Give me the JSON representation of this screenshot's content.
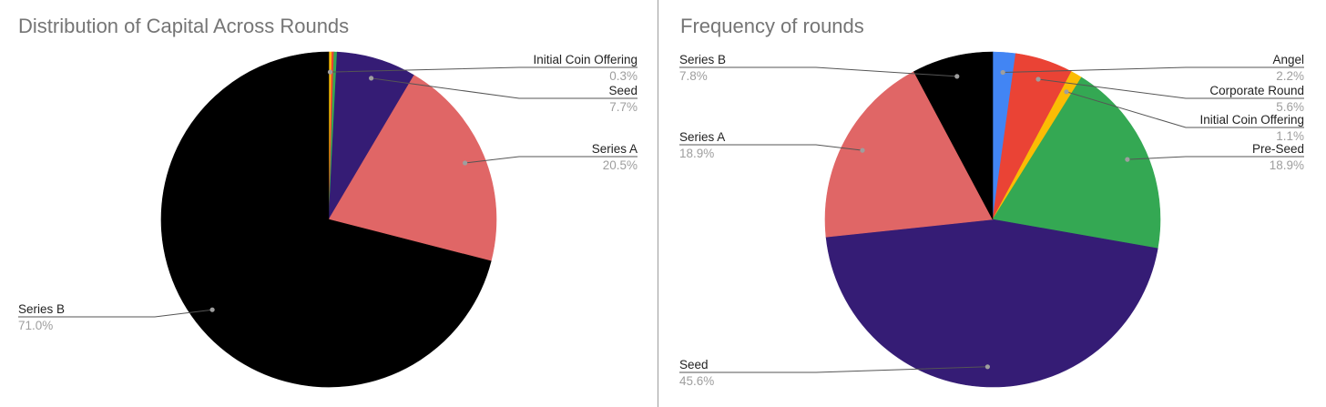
{
  "chart_data": [
    {
      "type": "pie",
      "title": "Distribution of Capital Across Rounds",
      "slices": [
        {
          "name": "Initial Coin Offering",
          "value": 0.3,
          "label": "0.3%",
          "color": "#fbbc04"
        },
        {
          "name": "",
          "value": 0.2,
          "label": "",
          "color": "#ea4335"
        },
        {
          "name": "",
          "value": 0.3,
          "label": "",
          "color": "#34a853"
        },
        {
          "name": "Seed",
          "value": 7.7,
          "label": "7.7%",
          "color": "#351c75"
        },
        {
          "name": "Series A",
          "value": 20.5,
          "label": "20.5%",
          "color": "#e06666"
        },
        {
          "name": "Series B",
          "value": 71.0,
          "label": "71.0%",
          "color": "#000000"
        }
      ]
    },
    {
      "type": "pie",
      "title": "Frequency of rounds",
      "slices": [
        {
          "name": "Angel",
          "value": 2.2,
          "label": "2.2%",
          "color": "#4285f4"
        },
        {
          "name": "Corporate Round",
          "value": 5.6,
          "label": "5.6%",
          "color": "#ea4335"
        },
        {
          "name": "Initial Coin Offering",
          "value": 1.1,
          "label": "1.1%",
          "color": "#fbbc04"
        },
        {
          "name": "Pre-Seed",
          "value": 18.9,
          "label": "18.9%",
          "color": "#34a853"
        },
        {
          "name": "Seed",
          "value": 45.6,
          "label": "45.6%",
          "color": "#351c75"
        },
        {
          "name": "Series A",
          "value": 18.9,
          "label": "18.9%",
          "color": "#e06666"
        },
        {
          "name": "Series B",
          "value": 7.8,
          "label": "7.8%",
          "color": "#000000"
        }
      ]
    }
  ]
}
